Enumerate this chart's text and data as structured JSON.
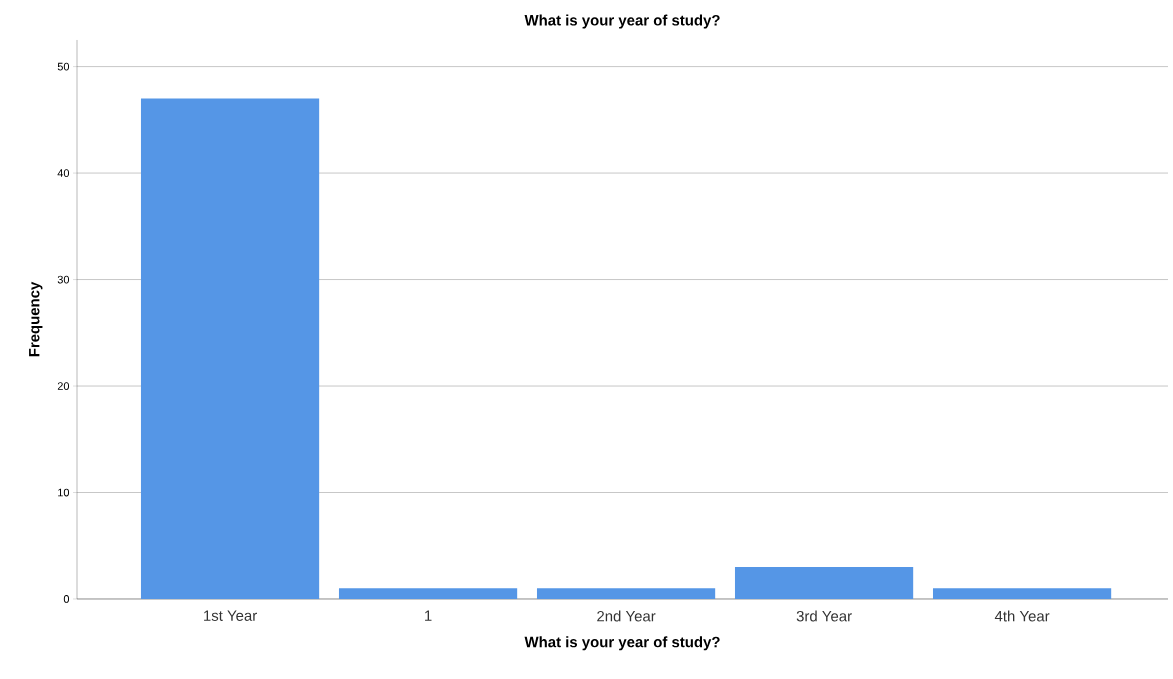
{
  "chart_data": {
    "type": "bar",
    "title": "What is your year of study?",
    "xlabel": "What is your year of study?",
    "ylabel": "Frequency",
    "categories": [
      "1st Year",
      "1",
      "2nd Year",
      "3rd Year",
      "4th Year"
    ],
    "values": [
      47,
      1,
      1,
      3,
      1
    ],
    "color": "#5596e6",
    "ylim": [
      0,
      52.5
    ],
    "yticks": [
      0,
      10,
      20,
      30,
      40,
      50
    ],
    "grid": "y"
  }
}
